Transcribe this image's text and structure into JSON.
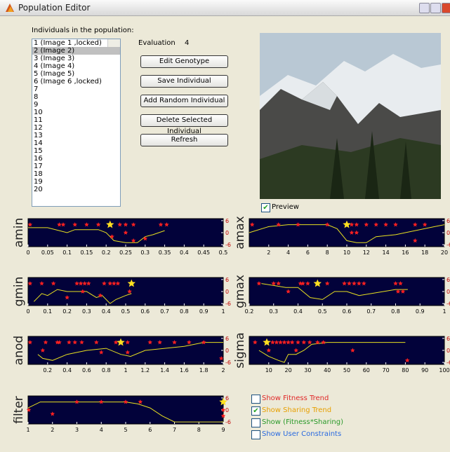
{
  "window": {
    "title": "Population Editor"
  },
  "population": {
    "label": "Individuals in the population:",
    "items": [
      "1 (Image 1 ,locked)",
      "2 (Image 2)",
      "3 (Image 3)",
      "4 (Image 4)",
      "5 (Image 5)",
      "6 (Image 6 ,locked)",
      "7",
      "8",
      "9",
      "10",
      "11",
      "12",
      "13",
      "14",
      "15",
      "16",
      "17",
      "18",
      "19",
      "20"
    ],
    "selected": 1
  },
  "evaluation": {
    "label": "Evaluation",
    "value": 4
  },
  "buttons": [
    "Edit Genotype",
    "Save Individual",
    "Add Random Individual",
    "Delete Selected Individual",
    "Refresh"
  ],
  "preview": {
    "label": "Preview",
    "checked": true
  },
  "plots": [
    {
      "label": "amin",
      "xlim": [
        0,
        0.5
      ],
      "xticks": [
        0,
        0.05,
        0.1,
        0.15,
        0.2,
        0.25,
        0.3,
        0.35,
        0.4,
        0.45,
        0.5
      ],
      "ylim": [
        -7,
        7
      ],
      "yticks": [
        6,
        0,
        -6
      ],
      "points": {
        "x": [
          0.005,
          0.08,
          0.09,
          0.12,
          0.15,
          0.18,
          0.235,
          0.25,
          0.27,
          0.34,
          0.355,
          0.25,
          0.215,
          0.3,
          0.27
        ],
        "y": [
          4,
          4,
          4,
          4,
          4,
          4,
          4,
          4,
          4,
          4,
          4,
          0,
          -2,
          -3,
          -4
        ]
      },
      "best": {
        "x": 0.21,
        "y": 4
      },
      "curve": {
        "x": [
          0,
          0.05,
          0.1,
          0.12,
          0.15,
          0.18,
          0.2,
          0.22,
          0.25,
          0.28,
          0.3,
          0.32,
          0.35
        ],
        "y": [
          2.5,
          2.5,
          0,
          1.5,
          1.5,
          1.5,
          0,
          -4,
          -5,
          -5,
          -2,
          -1,
          1
        ]
      }
    },
    {
      "label": "amax",
      "xlim": [
        0,
        20
      ],
      "xticks": [
        2,
        4,
        6,
        8,
        10,
        12,
        14,
        16,
        18,
        20
      ],
      "ylim": [
        -7,
        7
      ],
      "yticks": [
        6,
        0,
        -6
      ],
      "points": {
        "x": [
          0.3,
          3,
          5,
          8,
          10.5,
          11,
          12,
          13,
          14,
          15,
          17,
          18,
          11,
          10.5,
          17
        ],
        "y": [
          4,
          4,
          4,
          4,
          4,
          4,
          4,
          4,
          4,
          4,
          4,
          4,
          0,
          0,
          -4
        ]
      },
      "best": {
        "x": 10,
        "y": 4
      },
      "curve": {
        "x": [
          0,
          2,
          4,
          6,
          8,
          9,
          10,
          11,
          12,
          13,
          15,
          17,
          19,
          20
        ],
        "y": [
          0,
          3,
          4,
          4,
          4,
          2,
          -4,
          -5,
          -5,
          -2,
          -1,
          1,
          3,
          4
        ]
      }
    },
    {
      "label": "gmin",
      "xlim": [
        0,
        1
      ],
      "xticks": [
        0,
        0.1,
        0.2,
        0.3,
        0.4,
        0.5,
        0.6,
        0.7,
        0.8,
        0.9,
        1
      ],
      "ylim": [
        -7,
        7
      ],
      "yticks": [
        6,
        0,
        -6
      ],
      "points": {
        "x": [
          0.01,
          0.07,
          0.13,
          0.25,
          0.27,
          0.29,
          0.31,
          0.39,
          0.42,
          0.44,
          0.46,
          0.28,
          0.37,
          0.2,
          0.52
        ],
        "y": [
          4,
          4,
          4,
          4,
          4,
          4,
          4,
          4,
          4,
          4,
          4,
          0,
          -2,
          -3,
          0
        ]
      },
      "best": {
        "x": 0.53,
        "y": 4
      },
      "curve": {
        "x": [
          0.03,
          0.07,
          0.1,
          0.15,
          0.2,
          0.3,
          0.35,
          0.38,
          0.42,
          0.45,
          0.5,
          0.53
        ],
        "y": [
          -5,
          -1,
          -2,
          1,
          0,
          0,
          -3,
          -2,
          -6,
          -4,
          -2,
          -1
        ]
      }
    },
    {
      "label": "gmax",
      "xlim": [
        0.2,
        1
      ],
      "xticks": [
        0.2,
        0.3,
        0.4,
        0.5,
        0.6,
        0.7,
        0.8,
        0.9,
        1
      ],
      "ylim": [
        -7,
        7
      ],
      "yticks": [
        6,
        0,
        -6
      ],
      "points": {
        "x": [
          0.24,
          0.3,
          0.32,
          0.41,
          0.42,
          0.44,
          0.52,
          0.59,
          0.61,
          0.63,
          0.65,
          0.67,
          0.8,
          0.82,
          0.81,
          0.83,
          0.36
        ],
        "y": [
          4,
          4,
          4,
          4,
          4,
          4,
          4,
          4,
          4,
          4,
          4,
          4,
          4,
          4,
          0,
          0,
          0
        ]
      },
      "best": {
        "x": 0.48,
        "y": 4
      },
      "curve": {
        "x": [
          0.25,
          0.3,
          0.35,
          0.4,
          0.45,
          0.5,
          0.55,
          0.6,
          0.65,
          0.7,
          0.8,
          0.85
        ],
        "y": [
          4,
          3,
          2,
          2,
          -3,
          -4,
          0,
          0,
          -2,
          -1,
          1,
          1
        ]
      }
    },
    {
      "label": "anod",
      "xlim": [
        0,
        2
      ],
      "xticks": [
        0.2,
        0.4,
        0.6,
        0.8,
        1,
        1.2,
        1.4,
        1.6,
        1.8,
        2
      ],
      "ylim": [
        -7,
        7
      ],
      "yticks": [
        6,
        0,
        -6
      ],
      "points": {
        "x": [
          0.02,
          0.18,
          0.3,
          0.32,
          0.42,
          0.48,
          0.55,
          0.7,
          0.9,
          1.02,
          1.25,
          1.35,
          1.5,
          1.65,
          1.8,
          0.15,
          0.75,
          1.02,
          1.98
        ],
        "y": [
          4,
          4,
          4,
          4,
          4,
          4,
          4,
          4,
          4,
          4,
          4,
          4,
          4,
          4,
          4,
          0,
          -1,
          -1,
          -4
        ]
      },
      "best": {
        "x": 0.95,
        "y": 4
      },
      "curve": {
        "x": [
          0.1,
          0.15,
          0.25,
          0.4,
          0.6,
          0.8,
          0.95,
          1.05,
          1.2,
          1.4,
          1.6,
          1.8,
          2
        ],
        "y": [
          -2,
          -4,
          -5,
          -2,
          0,
          1,
          -2,
          -3,
          0,
          1,
          2,
          4,
          4
        ]
      }
    },
    {
      "label": "sigma",
      "xlim": [
        0,
        100
      ],
      "xticks": [
        10,
        20,
        30,
        40,
        50,
        60,
        70,
        80,
        90,
        100
      ],
      "ylim": [
        -7,
        7
      ],
      "yticks": [
        6,
        0,
        -6
      ],
      "points": {
        "x": [
          3,
          12,
          14,
          16,
          18,
          20,
          22,
          25,
          28,
          31,
          35,
          38,
          10,
          24,
          53,
          81
        ],
        "y": [
          4,
          4,
          4,
          4,
          4,
          4,
          4,
          4,
          4,
          4,
          4,
          4,
          0,
          0,
          0,
          -5
        ]
      },
      "best": {
        "x": 9,
        "y": 4
      },
      "curve": {
        "x": [
          5,
          10,
          15,
          18,
          20,
          24,
          28,
          32,
          40,
          55,
          80
        ],
        "y": [
          0,
          -3,
          -5,
          -6,
          -2,
          -2,
          0,
          3,
          4,
          4,
          4
        ]
      }
    },
    {
      "label": "filter",
      "xlim": [
        1,
        9
      ],
      "xticks": [
        1,
        2,
        3,
        4,
        5,
        6,
        7,
        8,
        9
      ],
      "ylim": [
        -7,
        7
      ],
      "yticks": [
        6,
        0,
        -6
      ],
      "points": {
        "x": [
          1.03,
          2,
          3,
          4,
          5,
          5.6,
          9,
          9
        ],
        "y": [
          0,
          -2,
          4,
          4,
          4,
          4,
          -3,
          0
        ]
      },
      "best": {
        "x": 9,
        "y": 4
      },
      "curve": {
        "x": [
          1,
          1.5,
          2,
          3,
          4,
          5,
          5.5,
          6,
          6.5,
          7,
          7.5,
          8,
          9
        ],
        "y": [
          1,
          4,
          4,
          4,
          4,
          4,
          3,
          1,
          -3,
          -6,
          -6,
          -6,
          -6
        ]
      }
    }
  ],
  "options": [
    {
      "label": "Show Fitness Trend",
      "color": "#e02828",
      "checked": false
    },
    {
      "label": "Show Sharing Trend",
      "color": "#e8a000",
      "checked": true
    },
    {
      "label": "Show (Fitness*Sharing)",
      "color": "#2a9a2a",
      "checked": false
    },
    {
      "label": "Show User Constraints",
      "color": "#2a6ae0",
      "checked": false
    }
  ]
}
